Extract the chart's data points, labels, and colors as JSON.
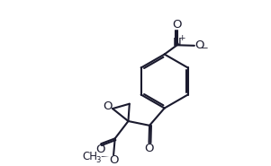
{
  "bg_color": "#ffffff",
  "line_color": "#1a1a2e",
  "line_width": 1.5,
  "font_size": 8.5,
  "figsize": [
    3.01,
    1.85
  ],
  "dpi": 100,
  "xlim": [
    0,
    10
  ],
  "ylim": [
    0,
    6.5
  ]
}
